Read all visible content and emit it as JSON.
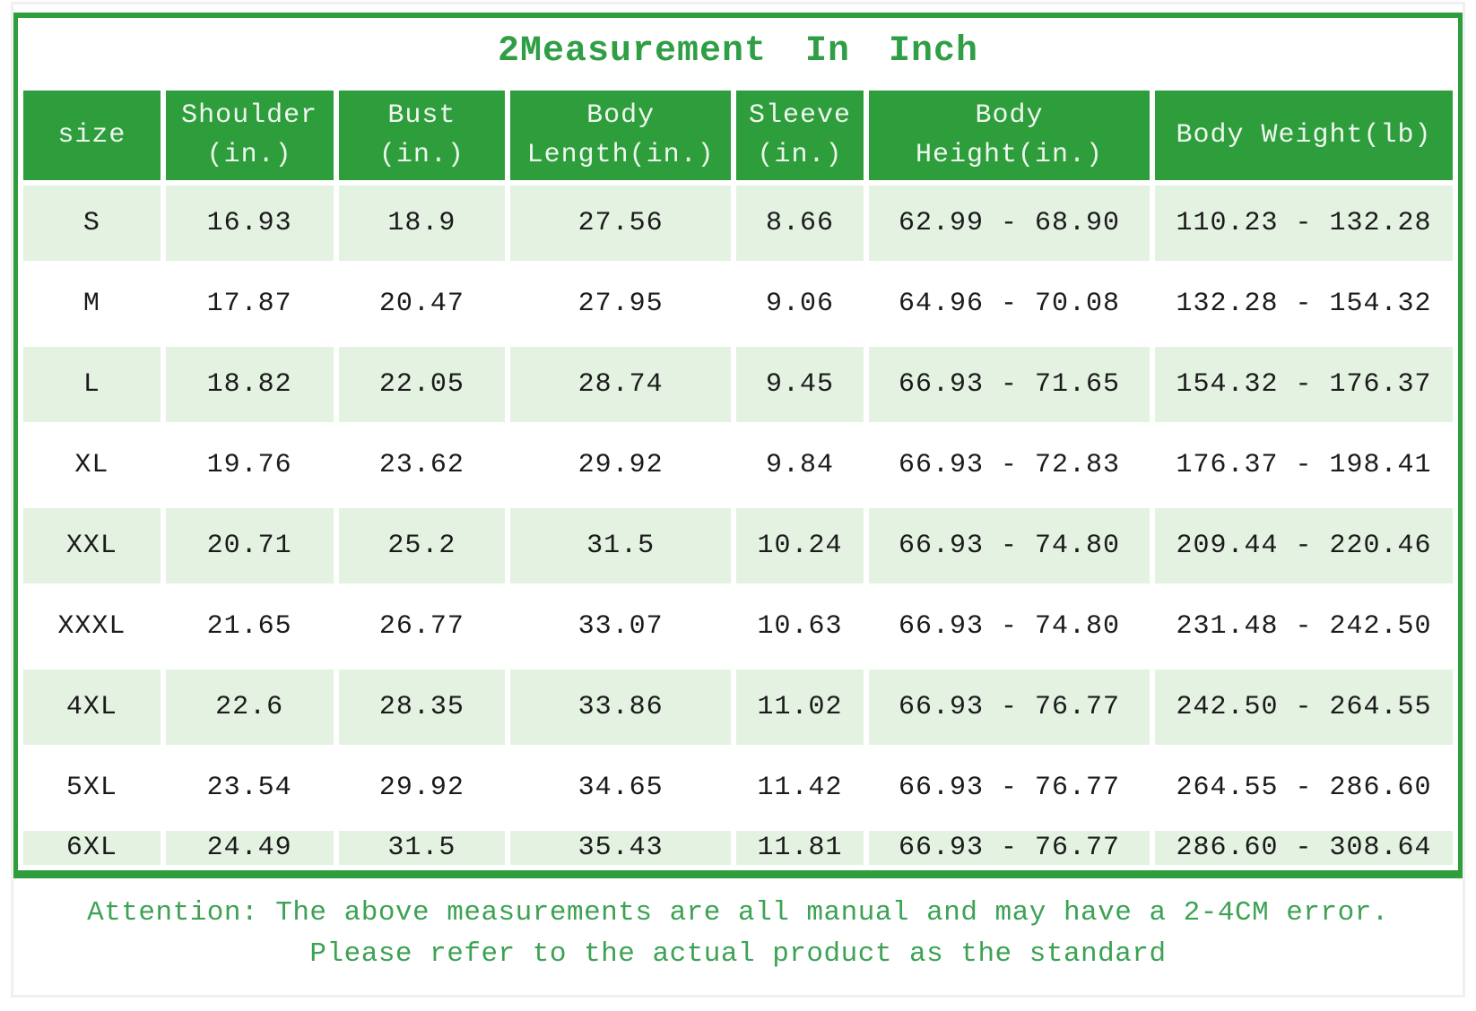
{
  "title": "2Measurement In Inch",
  "colors": {
    "green": "#2e9e3c",
    "light_row": "#e3f2e1",
    "title_text": "#2f9e45",
    "note_text": "#3da254",
    "header_text": "#eef7ee",
    "cell_text": "#1b1b1b",
    "frame_gray": "#f0f0f0"
  },
  "table": {
    "columns": [
      "size",
      "Shoulder\n(in.)",
      "Bust\n(in.)",
      "Body\nLength(in.)",
      "Sleeve\n(in.)",
      "Body\nHeight(in.)",
      "Body Weight(lb)"
    ],
    "rows": [
      [
        "S",
        "16.93",
        "18.9",
        "27.56",
        "8.66",
        "62.99 - 68.90",
        "110.23 - 132.28"
      ],
      [
        "M",
        "17.87",
        "20.47",
        "27.95",
        "9.06",
        "64.96 - 70.08",
        "132.28 - 154.32"
      ],
      [
        "L",
        "18.82",
        "22.05",
        "28.74",
        "9.45",
        "66.93 - 71.65",
        "154.32 - 176.37"
      ],
      [
        "XL",
        "19.76",
        "23.62",
        "29.92",
        "9.84",
        "66.93 - 72.83",
        "176.37 - 198.41"
      ],
      [
        "XXL",
        "20.71",
        "25.2",
        "31.5",
        "10.24",
        "66.93 - 74.80",
        "209.44 - 220.46"
      ],
      [
        "XXXL",
        "21.65",
        "26.77",
        "33.07",
        "10.63",
        "66.93 - 74.80",
        "231.48 - 242.50"
      ],
      [
        "4XL",
        "22.6",
        "28.35",
        "33.86",
        "11.02",
        "66.93 - 76.77",
        "242.50 - 264.55"
      ],
      [
        "5XL",
        "23.54",
        "29.92",
        "34.65",
        "11.42",
        "66.93 - 76.77",
        "264.55 - 286.60"
      ],
      [
        "6XL",
        "24.49",
        "31.5",
        "35.43",
        "11.81",
        "66.93 - 76.77",
        "286.60 - 308.64"
      ]
    ]
  },
  "notes": {
    "line1": "Attention: The above measurements are all manual and may have a 2-4CM error.",
    "line2": "Please refer to the actual product as the standard"
  },
  "chart_data": {
    "type": "table",
    "title": "2Measurement In Inch",
    "columns": [
      "size",
      "Shoulder (in.)",
      "Bust (in.)",
      "Body Length(in.)",
      "Sleeve (in.)",
      "Body Height(in.)",
      "Body Weight(lb)"
    ],
    "rows": [
      [
        "S",
        16.93,
        18.9,
        27.56,
        8.66,
        "62.99 - 68.90",
        "110.23 - 132.28"
      ],
      [
        "M",
        17.87,
        20.47,
        27.95,
        9.06,
        "64.96 - 70.08",
        "132.28 - 154.32"
      ],
      [
        "L",
        18.82,
        22.05,
        28.74,
        9.45,
        "66.93 - 71.65",
        "154.32 - 176.37"
      ],
      [
        "XL",
        19.76,
        23.62,
        29.92,
        9.84,
        "66.93 - 72.83",
        "176.37 - 198.41"
      ],
      [
        "XXL",
        20.71,
        25.2,
        31.5,
        10.24,
        "66.93 - 74.80",
        "209.44 - 220.46"
      ],
      [
        "XXXL",
        21.65,
        26.77,
        33.07,
        10.63,
        "66.93 - 74.80",
        "231.48 - 242.50"
      ],
      [
        "4XL",
        22.6,
        28.35,
        33.86,
        11.02,
        "66.93 - 76.77",
        "242.50 - 264.55"
      ],
      [
        "5XL",
        23.54,
        29.92,
        34.65,
        11.42,
        "66.93 - 76.77",
        "264.55 - 286.60"
      ],
      [
        "6XL",
        24.49,
        31.5,
        35.43,
        11.81,
        "66.93 - 76.77",
        "286.60 - 308.64"
      ]
    ],
    "layout": {
      "striped_rows": "odd rows light green",
      "header_background": "green",
      "grid": "white gutters between cells"
    }
  }
}
